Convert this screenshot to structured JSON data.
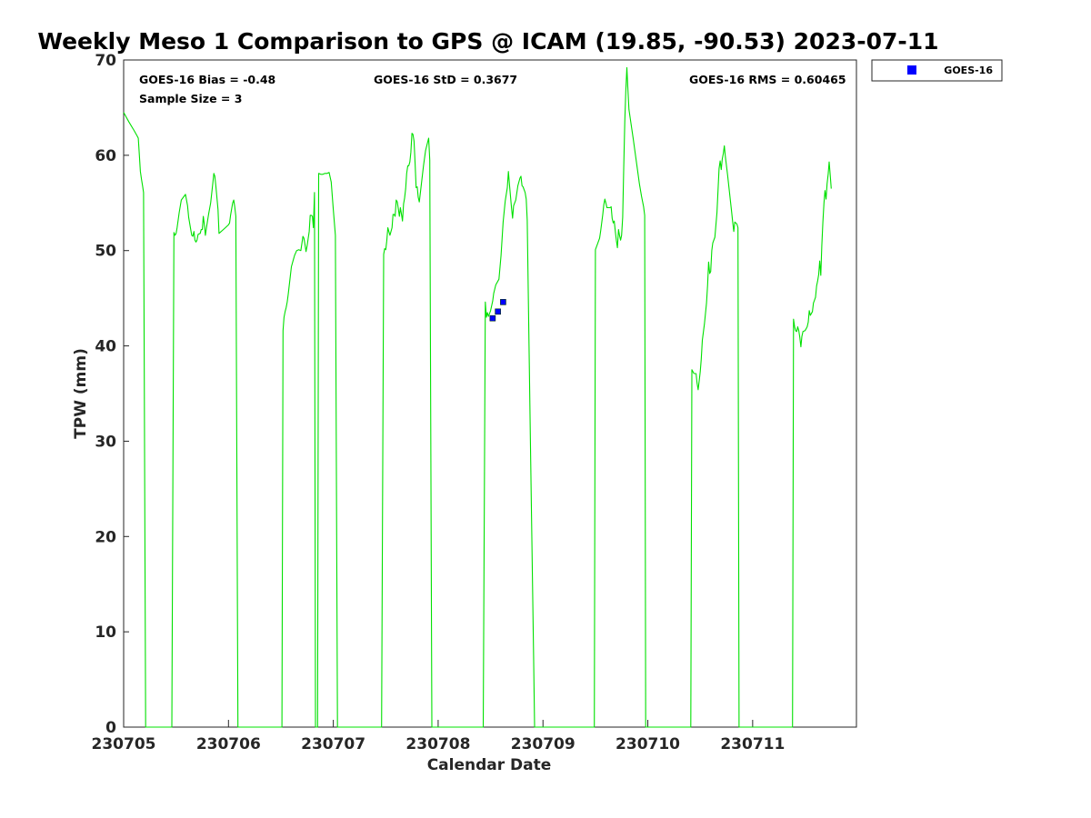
{
  "chart_data": {
    "type": "line",
    "title": "Weekly Meso 1 Comparison to GPS @ ICAM (19.85, -90.53) 2023-07-11",
    "xlabel": "Calendar Date",
    "ylabel": "TPW (mm)",
    "xlim": [
      0,
      6.99
    ],
    "ylim": [
      0,
      70
    ],
    "x_ticks": [
      {
        "value": 0,
        "label": "230705"
      },
      {
        "value": 1,
        "label": "230706"
      },
      {
        "value": 2,
        "label": "230707"
      },
      {
        "value": 3,
        "label": "230708"
      },
      {
        "value": 4,
        "label": "230709"
      },
      {
        "value": 5,
        "label": "230710"
      },
      {
        "value": 6,
        "label": "230711"
      }
    ],
    "y_ticks": [
      0,
      10,
      20,
      30,
      40,
      50,
      60,
      70
    ],
    "grid": false,
    "x_units": "days since 230705 00Z",
    "stats": {
      "bias": "GOES-16 Bias = -0.48",
      "std": "GOES-16 StD = 0.3677",
      "rms": "GOES-16 RMS = 0.60465",
      "sample": "Sample Size = 3"
    },
    "legend": {
      "position": "outside-top-right",
      "entries": [
        {
          "name": "GOES-16",
          "color": "#0000ff",
          "marker": "square"
        }
      ]
    },
    "gps_series": {
      "color": "#00e000",
      "points": [
        [
          0.0,
          64.5
        ],
        [
          0.05,
          63.5
        ],
        [
          0.1,
          62.6
        ],
        [
          0.13,
          62.0
        ],
        [
          0.14,
          61.8
        ],
        [
          0.15,
          60.0
        ],
        [
          0.16,
          58.3
        ],
        [
          0.17,
          57.5
        ],
        [
          0.18,
          56.8
        ],
        [
          0.19,
          56.1
        ],
        [
          0.21,
          0
        ],
        [
          0.46,
          0
        ],
        [
          0.48,
          51.9
        ],
        [
          0.49,
          51.6
        ],
        [
          0.5,
          51.8
        ],
        [
          0.51,
          52.4
        ],
        [
          0.53,
          54.0
        ],
        [
          0.55,
          55.3
        ],
        [
          0.57,
          55.6
        ],
        [
          0.59,
          55.9
        ],
        [
          0.61,
          54.7
        ],
        [
          0.62,
          53.5
        ],
        [
          0.64,
          52.2
        ],
        [
          0.65,
          51.6
        ],
        [
          0.66,
          51.5
        ],
        [
          0.67,
          52.0
        ],
        [
          0.68,
          51.1
        ],
        [
          0.69,
          50.9
        ],
        [
          0.7,
          51.1
        ],
        [
          0.71,
          51.7
        ],
        [
          0.73,
          51.8
        ],
        [
          0.74,
          52.2
        ],
        [
          0.75,
          52.2
        ],
        [
          0.76,
          53.6
        ],
        [
          0.77,
          52.7
        ],
        [
          0.78,
          51.6
        ],
        [
          0.79,
          52.4
        ],
        [
          0.81,
          53.8
        ],
        [
          0.83,
          55.0
        ],
        [
          0.85,
          57.0
        ],
        [
          0.86,
          58.1
        ],
        [
          0.87,
          57.8
        ],
        [
          0.88,
          56.7
        ],
        [
          0.9,
          54.3
        ],
        [
          0.91,
          51.8
        ],
        [
          0.96,
          52.3
        ],
        [
          1.0,
          52.7
        ],
        [
          1.01,
          52.9
        ],
        [
          1.02,
          53.7
        ],
        [
          1.04,
          55.0
        ],
        [
          1.05,
          55.3
        ],
        [
          1.06,
          54.6
        ],
        [
          1.07,
          53.6
        ],
        [
          1.09,
          0
        ],
        [
          1.51,
          0
        ],
        [
          1.52,
          41.6
        ],
        [
          1.53,
          43.0
        ],
        [
          1.54,
          43.6
        ],
        [
          1.55,
          44.0
        ],
        [
          1.56,
          44.6
        ],
        [
          1.57,
          45.4
        ],
        [
          1.58,
          46.4
        ],
        [
          1.59,
          47.3
        ],
        [
          1.6,
          48.3
        ],
        [
          1.62,
          49.1
        ],
        [
          1.63,
          49.5
        ],
        [
          1.65,
          50.0
        ],
        [
          1.67,
          50.1
        ],
        [
          1.69,
          50.0
        ],
        [
          1.71,
          51.5
        ],
        [
          1.72,
          51.3
        ],
        [
          1.73,
          50.6
        ],
        [
          1.74,
          49.9
        ],
        [
          1.75,
          50.5
        ],
        [
          1.77,
          52.0
        ],
        [
          1.78,
          53.7
        ],
        [
          1.79,
          53.7
        ],
        [
          1.8,
          53.6
        ],
        [
          1.81,
          52.4
        ],
        [
          1.82,
          56.1
        ],
        [
          1.83,
          0
        ],
        [
          1.85,
          0
        ],
        [
          1.86,
          58.1
        ],
        [
          1.88,
          58.0
        ],
        [
          1.9,
          58.0
        ],
        [
          1.92,
          58.1
        ],
        [
          1.94,
          58.1
        ],
        [
          1.96,
          58.2
        ],
        [
          1.98,
          57.2
        ],
        [
          2.0,
          54.3
        ],
        [
          2.02,
          51.6
        ],
        [
          2.04,
          0
        ],
        [
          2.46,
          0
        ],
        [
          2.48,
          49.6
        ],
        [
          2.49,
          50.2
        ],
        [
          2.5,
          50.1
        ],
        [
          2.51,
          51.0
        ],
        [
          2.52,
          52.4
        ],
        [
          2.53,
          52.0
        ],
        [
          2.54,
          51.6
        ],
        [
          2.56,
          52.4
        ],
        [
          2.57,
          53.8
        ],
        [
          2.58,
          53.8
        ],
        [
          2.59,
          53.6
        ],
        [
          2.6,
          55.3
        ],
        [
          2.61,
          55.1
        ],
        [
          2.62,
          54.4
        ],
        [
          2.63,
          53.6
        ],
        [
          2.64,
          54.5
        ],
        [
          2.65,
          53.8
        ],
        [
          2.66,
          53.1
        ],
        [
          2.67,
          54.9
        ],
        [
          2.68,
          55.5
        ],
        [
          2.69,
          56.5
        ],
        [
          2.7,
          58.1
        ],
        [
          2.71,
          58.9
        ],
        [
          2.72,
          58.9
        ],
        [
          2.73,
          59.3
        ],
        [
          2.74,
          60.3
        ],
        [
          2.75,
          62.3
        ],
        [
          2.76,
          62.2
        ],
        [
          2.77,
          61.5
        ],
        [
          2.78,
          59.1
        ],
        [
          2.79,
          56.6
        ],
        [
          2.8,
          56.7
        ],
        [
          2.81,
          55.6
        ],
        [
          2.82,
          55.1
        ],
        [
          2.84,
          57.0
        ],
        [
          2.86,
          58.9
        ],
        [
          2.88,
          60.5
        ],
        [
          2.9,
          61.4
        ],
        [
          2.91,
          61.8
        ],
        [
          2.92,
          59.5
        ],
        [
          2.94,
          0
        ],
        [
          3.43,
          0
        ],
        [
          3.45,
          44.6
        ],
        [
          3.46,
          43.0
        ],
        [
          3.47,
          43.5
        ],
        [
          3.48,
          43.1
        ],
        [
          3.5,
          43.7
        ],
        [
          3.52,
          44.7
        ],
        [
          3.53,
          45.5
        ],
        [
          3.55,
          46.4
        ],
        [
          3.57,
          46.8
        ],
        [
          3.58,
          47.0
        ],
        [
          3.6,
          49.5
        ],
        [
          3.62,
          53.0
        ],
        [
          3.64,
          55.2
        ],
        [
          3.66,
          56.6
        ],
        [
          3.67,
          58.3
        ],
        [
          3.68,
          57.0
        ],
        [
          3.7,
          54.5
        ],
        [
          3.71,
          53.4
        ],
        [
          3.72,
          54.7
        ],
        [
          3.74,
          55.3
        ],
        [
          3.76,
          56.8
        ],
        [
          3.78,
          57.6
        ],
        [
          3.79,
          57.8
        ],
        [
          3.8,
          56.8
        ],
        [
          3.81,
          56.7
        ],
        [
          3.83,
          56.1
        ],
        [
          3.84,
          55.4
        ],
        [
          3.85,
          53.2
        ],
        [
          3.88,
          30.0
        ],
        [
          3.91,
          7.5
        ],
        [
          3.92,
          0
        ],
        [
          4.49,
          0
        ],
        [
          4.5,
          50.1
        ],
        [
          4.52,
          50.7
        ],
        [
          4.54,
          51.3
        ],
        [
          4.55,
          52.0
        ],
        [
          4.57,
          53.8
        ],
        [
          4.58,
          54.8
        ],
        [
          4.59,
          55.4
        ],
        [
          4.6,
          55.0
        ],
        [
          4.61,
          54.5
        ],
        [
          4.62,
          54.5
        ],
        [
          4.64,
          54.5
        ],
        [
          4.65,
          54.6
        ],
        [
          4.66,
          53.4
        ],
        [
          4.67,
          52.9
        ],
        [
          4.68,
          53.1
        ],
        [
          4.69,
          52.0
        ],
        [
          4.7,
          51.1
        ],
        [
          4.71,
          50.3
        ],
        [
          4.72,
          52.2
        ],
        [
          4.73,
          51.6
        ],
        [
          4.74,
          51.1
        ],
        [
          4.75,
          51.6
        ],
        [
          4.76,
          53.5
        ],
        [
          4.77,
          58.5
        ],
        [
          4.78,
          63.5
        ],
        [
          4.79,
          66.7
        ],
        [
          4.8,
          69.2
        ],
        [
          4.81,
          67.0
        ],
        [
          4.82,
          64.8
        ],
        [
          4.84,
          63.3
        ],
        [
          4.86,
          61.8
        ],
        [
          4.88,
          60.2
        ],
        [
          4.9,
          58.6
        ],
        [
          4.92,
          57.0
        ],
        [
          4.94,
          55.7
        ],
        [
          4.96,
          54.6
        ],
        [
          4.97,
          53.7
        ],
        [
          4.98,
          0
        ],
        [
          5.41,
          0
        ],
        [
          5.42,
          37.5
        ],
        [
          5.44,
          37.1
        ],
        [
          5.46,
          37.1
        ],
        [
          5.47,
          36.1
        ],
        [
          5.48,
          35.4
        ],
        [
          5.49,
          36.3
        ],
        [
          5.5,
          37.3
        ],
        [
          5.51,
          38.6
        ],
        [
          5.52,
          40.6
        ],
        [
          5.54,
          42.3
        ],
        [
          5.56,
          44.5
        ],
        [
          5.57,
          46.4
        ],
        [
          5.58,
          48.8
        ],
        [
          5.59,
          47.6
        ],
        [
          5.6,
          47.8
        ],
        [
          5.61,
          50.0
        ],
        [
          5.62,
          50.8
        ],
        [
          5.64,
          51.4
        ],
        [
          5.66,
          54.0
        ],
        [
          5.67,
          56.4
        ],
        [
          5.68,
          58.6
        ],
        [
          5.69,
          59.4
        ],
        [
          5.7,
          58.5
        ],
        [
          5.71,
          59.6
        ],
        [
          5.72,
          60.2
        ],
        [
          5.73,
          61.0
        ],
        [
          5.74,
          59.8
        ],
        [
          5.76,
          58.0
        ],
        [
          5.78,
          56.0
        ],
        [
          5.8,
          54.0
        ],
        [
          5.81,
          53.0
        ],
        [
          5.82,
          52.0
        ],
        [
          5.83,
          53.0
        ],
        [
          5.85,
          52.8
        ],
        [
          5.86,
          52.4
        ],
        [
          5.87,
          0
        ],
        [
          6.38,
          0
        ],
        [
          6.39,
          42.8
        ],
        [
          6.4,
          42.0
        ],
        [
          6.41,
          41.6
        ],
        [
          6.42,
          41.5
        ],
        [
          6.43,
          42.0
        ],
        [
          6.44,
          41.6
        ],
        [
          6.45,
          40.9
        ],
        [
          6.46,
          39.9
        ],
        [
          6.47,
          41.0
        ],
        [
          6.48,
          41.5
        ],
        [
          6.5,
          41.6
        ],
        [
          6.52,
          42.0
        ],
        [
          6.53,
          42.5
        ],
        [
          6.54,
          43.7
        ],
        [
          6.55,
          43.2
        ],
        [
          6.57,
          43.6
        ],
        [
          6.58,
          44.5
        ],
        [
          6.59,
          44.8
        ],
        [
          6.6,
          45.1
        ],
        [
          6.61,
          46.3
        ],
        [
          6.62,
          46.8
        ],
        [
          6.63,
          47.5
        ],
        [
          6.64,
          48.9
        ],
        [
          6.65,
          47.4
        ],
        [
          6.66,
          50.5
        ],
        [
          6.67,
          53.0
        ],
        [
          6.68,
          55.0
        ],
        [
          6.69,
          56.3
        ],
        [
          6.7,
          55.4
        ],
        [
          6.71,
          57.0
        ],
        [
          6.72,
          58.0
        ],
        [
          6.73,
          59.3
        ],
        [
          6.74,
          57.9
        ],
        [
          6.75,
          56.5
        ]
      ]
    },
    "goes_points": [
      {
        "x": 3.52,
        "y": 42.9
      },
      {
        "x": 3.57,
        "y": 43.6
      },
      {
        "x": 3.62,
        "y": 44.6
      }
    ]
  }
}
